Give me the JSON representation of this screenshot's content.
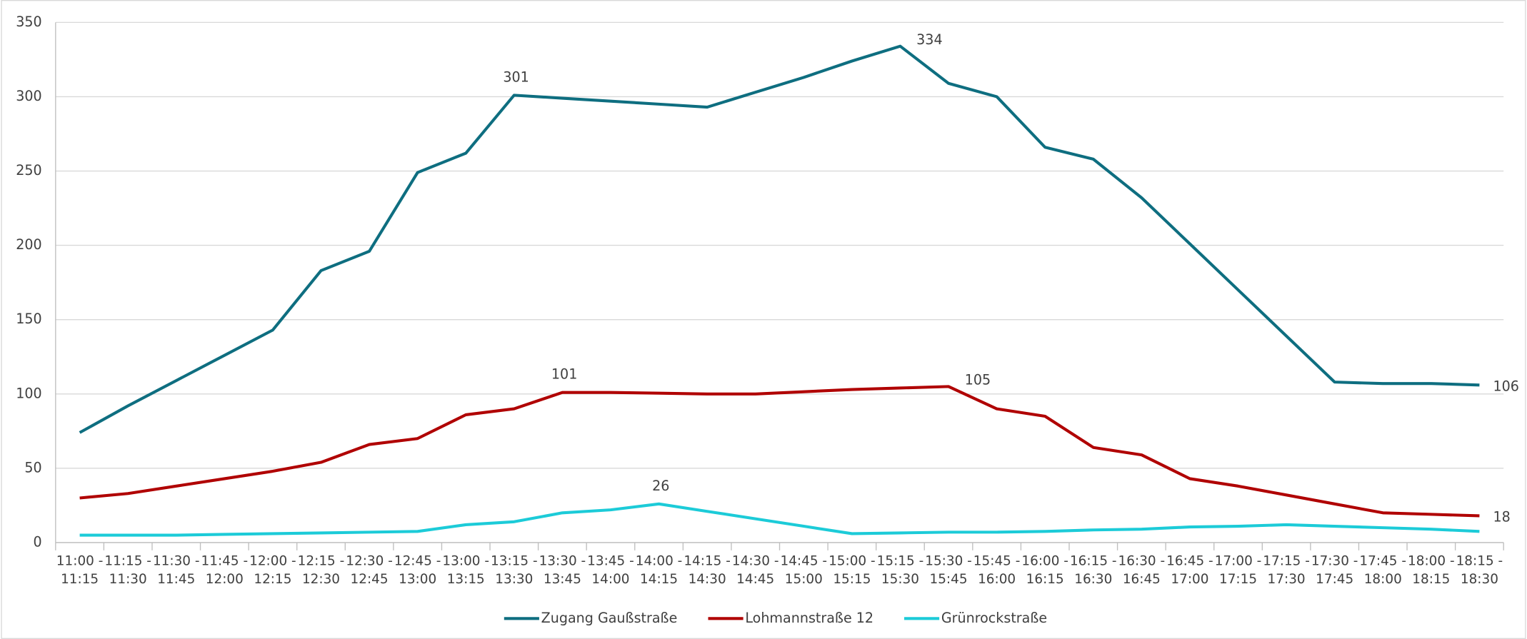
{
  "chart_data": {
    "type": "line",
    "categories": [
      "11:00 - 11:15",
      "11:15 - 11:30",
      "11:30 - 11:45",
      "11:45 - 12:00",
      "12:00 - 12:15",
      "12:15 - 12:30",
      "12:30 - 12:45",
      "12:45 - 13:00",
      "13:00 - 13:15",
      "13:15 - 13:30",
      "13:30 - 13:45",
      "13:45 - 14:00",
      "14:00 - 14:15",
      "14:15 - 14:30",
      "14:30 - 14:45",
      "14:45 - 15:00",
      "15:00 - 15:15",
      "15:15 - 15:30",
      "15:30 - 15:45",
      "15:45 - 16:00",
      "16:00 - 16:15",
      "16:15 - 16:30",
      "16:30 - 16:45",
      "16:45 - 17:00",
      "17:00 - 17:15",
      "17:15 - 17:30",
      "17:30 - 17:45",
      "17:45 - 18:00",
      "18:00 - 18:15",
      "18:15 - 18:30"
    ],
    "series": [
      {
        "name": "Zugang Gaußstraße",
        "color": "#0e6e80",
        "values": [
          74,
          92,
          109,
          126,
          143,
          183,
          196,
          249,
          262,
          301,
          299,
          297,
          295,
          293,
          303,
          313,
          324,
          334,
          309,
          300,
          266,
          258,
          232,
          201,
          170,
          139,
          108,
          107,
          107,
          106
        ],
        "value_labels": [
          null,
          null,
          null,
          null,
          null,
          null,
          null,
          null,
          null,
          "301",
          null,
          null,
          null,
          null,
          null,
          null,
          null,
          "334",
          null,
          null,
          null,
          null,
          null,
          null,
          null,
          null,
          null,
          null,
          null,
          "106"
        ]
      },
      {
        "name": "Lohmannstraße 12",
        "color": "#b00000",
        "values": [
          30,
          33,
          38,
          43,
          48,
          54,
          66,
          70,
          86,
          90,
          101,
          101,
          100.5,
          100,
          100,
          101.5,
          103,
          104,
          105,
          90,
          85,
          64,
          59,
          43,
          38,
          32,
          26,
          20,
          19,
          18
        ],
        "value_labels": [
          null,
          null,
          null,
          null,
          null,
          null,
          null,
          null,
          null,
          null,
          "101",
          null,
          null,
          null,
          null,
          null,
          null,
          null,
          "105",
          null,
          null,
          null,
          null,
          null,
          null,
          null,
          null,
          null,
          null,
          "18"
        ]
      },
      {
        "name": "Grünrockstraße",
        "color": "#1ccbd8",
        "values": [
          5,
          5,
          5,
          5.5,
          6,
          6.5,
          7,
          7.5,
          12,
          14,
          20,
          22,
          26,
          21,
          16,
          11,
          6,
          6.5,
          7,
          7,
          7.5,
          8.5,
          9,
          10.5,
          11,
          12,
          11,
          10,
          9,
          7.5
        ],
        "value_labels": [
          null,
          null,
          null,
          null,
          null,
          null,
          null,
          null,
          null,
          null,
          null,
          null,
          "26",
          null,
          null,
          null,
          null,
          null,
          null,
          null,
          null,
          null,
          null,
          null,
          null,
          null,
          null,
          null,
          null,
          null
        ]
      }
    ],
    "ylim": [
      0,
      350
    ],
    "yticks": [
      0,
      50,
      100,
      150,
      200,
      250,
      300,
      350
    ],
    "grid": true,
    "legend": "bottom"
  }
}
